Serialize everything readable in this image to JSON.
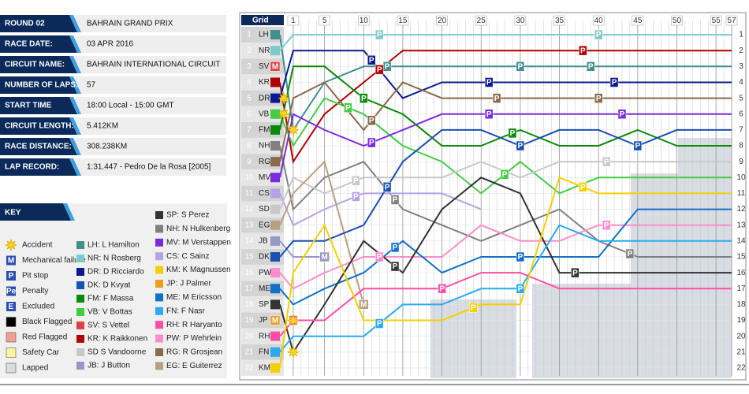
{
  "info": {
    "round": "ROUND 02",
    "race_name": "BAHRAIN GRAND PRIX",
    "rows": [
      {
        "label": "RACE DATE:",
        "value": "03 APR 2016"
      },
      {
        "label": "CIRCUIT NAME:",
        "value": "BAHRAIN INTERNATIONAL CIRCUIT"
      },
      {
        "label": "NUMBER OF LAPS:",
        "value": "57"
      },
      {
        "label": "START TIME",
        "value": "18:00 Local - 15:00 GMT"
      },
      {
        "label": "CIRCUIT LENGTH:",
        "value": "5.412KM"
      },
      {
        "label": "RACE DISTANCE:",
        "value": "308.238KM"
      },
      {
        "label": "LAP RECORD:",
        "value": "1:31.447 - Pedro De la Rosa [2005]"
      }
    ]
  },
  "key": {
    "title": "KEY",
    "symbols": [
      {
        "label": "Accident"
      },
      {
        "label": "Mechanical failure",
        "icon": "M"
      },
      {
        "label": "Pit stop",
        "icon": "P"
      },
      {
        "label": "Penalty",
        "icon": "Pe"
      },
      {
        "label": "Excluded",
        "icon": "E"
      },
      {
        "label": "Black Flagged",
        "color": "#000000"
      },
      {
        "label": "Red Flagged",
        "color": "#f4a090"
      },
      {
        "label": "Safety Car",
        "color": "#fff3a0"
      },
      {
        "label": "Lapped",
        "color": "#d8dde3"
      }
    ],
    "drivers_a": [
      {
        "text": "LH: L Hamilton",
        "color": "#3f8f8f"
      },
      {
        "text": "NR: N Rosberg",
        "color": "#7fc9c9"
      },
      {
        "text": "DR: D Ricciardo",
        "color": "#0a1a90"
      },
      {
        "text": "DK: D Kvyat",
        "color": "#1a50b0"
      },
      {
        "text": "FM: F Massa",
        "color": "#0a8a0a"
      },
      {
        "text": "VB: V Bottas",
        "color": "#44cc44"
      },
      {
        "text": "SV: S Vettel",
        "color": "#e04040"
      },
      {
        "text": "KR: K Raikkonen",
        "color": "#b00000"
      },
      {
        "text": "SD S Vandoorne",
        "color": "#c8c8cc"
      },
      {
        "text": "JB: J Button",
        "color": "#9898c8"
      }
    ],
    "drivers_b": [
      {
        "text": "SP: S Perez",
        "color": "#333333"
      },
      {
        "text": "NH: N Hulkenberg",
        "color": "#808080"
      },
      {
        "text": "MV: M Verstappen",
        "color": "#7a2bdc"
      },
      {
        "text": "CS: C Sainz",
        "color": "#b4a4e4"
      },
      {
        "text": "KM: K Magnussen",
        "color": "#f5d000"
      },
      {
        "text": "JP: J Palmer",
        "color": "#e8a020"
      },
      {
        "text": "ME: M Ericsson",
        "color": "#1270c8"
      },
      {
        "text": "FN: F Nasr",
        "color": "#2aaaf0"
      },
      {
        "text": "RH: R Haryanto",
        "color": "#ff4da6"
      },
      {
        "text": "PW: P Wehrlein",
        "color": "#ff8ccc"
      },
      {
        "text": "RG: R Grosjean",
        "color": "#8a6a4a"
      },
      {
        "text": "EG: E Guiterrez",
        "color": "#b8a080"
      }
    ]
  },
  "chart_data": {
    "type": "line",
    "grid_label": "Grid",
    "x": [
      0,
      1,
      5,
      10,
      15,
      20,
      25,
      30,
      35,
      40,
      45,
      50,
      57
    ],
    "xlim": [
      0,
      57
    ],
    "xticks": [
      1,
      5,
      10,
      15,
      20,
      25,
      30,
      35,
      40,
      45,
      50,
      55,
      57
    ],
    "ylim": [
      0.5,
      22.5
    ],
    "y_inverted": true,
    "yticks": [
      1,
      2,
      3,
      4,
      5,
      6,
      7,
      8,
      9,
      10,
      11,
      12,
      13,
      14,
      15,
      16,
      17,
      18,
      19,
      20,
      21,
      22
    ],
    "series": [
      {
        "name": "LH",
        "color": "#3f8f8f",
        "values": [
          1,
          7,
          4,
          3,
          3,
          3,
          3,
          3,
          3,
          3,
          3,
          3,
          3
        ],
        "pit_laps": [
          13,
          30,
          39
        ],
        "accident_laps": [
          1
        ]
      },
      {
        "name": "NR",
        "color": "#7fc9c9",
        "values": [
          2,
          1,
          1,
          1,
          1,
          1,
          1,
          1,
          1,
          1,
          1,
          1,
          1
        ],
        "pit_laps": [
          12,
          40
        ]
      },
      {
        "name": "SV",
        "color": "#e04040",
        "values": [
          3,
          null,
          null,
          null,
          null,
          null,
          null,
          null,
          null,
          null,
          null,
          null,
          null
        ],
        "failure_laps": [
          0
        ]
      },
      {
        "name": "KR",
        "color": "#b00000",
        "values": [
          4,
          9,
          6,
          4,
          2,
          2,
          2,
          2,
          2,
          2,
          2,
          2,
          2
        ],
        "pit_laps": [
          12,
          38
        ]
      },
      {
        "name": "DR",
        "color": "#0a1a90",
        "values": [
          5,
          2,
          2,
          2,
          5,
          4,
          4,
          4,
          4,
          4,
          4,
          4,
          4
        ],
        "pit_laps": [
          11,
          26,
          42
        ],
        "accident_laps": [
          0
        ]
      },
      {
        "name": "VB",
        "color": "#44cc44",
        "values": [
          6,
          8,
          5,
          6,
          8,
          9,
          11,
          9,
          11,
          10,
          10,
          10,
          10
        ],
        "pit_laps": [
          8,
          28
        ],
        "accident_laps": [
          0
        ]
      },
      {
        "name": "FM",
        "color": "#0a8a0a",
        "values": [
          7,
          3,
          3,
          5,
          6,
          8,
          8,
          7,
          8,
          8,
          7,
          8,
          8
        ],
        "pit_laps": [
          10,
          29
        ]
      },
      {
        "name": "NH",
        "color": "#808080",
        "values": [
          8,
          12,
          10,
          9,
          12,
          13,
          14,
          13,
          12,
          14,
          15,
          15,
          15
        ],
        "pit_laps": [
          14,
          44
        ]
      },
      {
        "name": "RG",
        "color": "#8a6a4a",
        "values": [
          9,
          5,
          4,
          7,
          4,
          5,
          5,
          5,
          5,
          5,
          5,
          5,
          5
        ],
        "pit_laps": [
          11,
          27,
          40
        ]
      },
      {
        "name": "MV",
        "color": "#7a2bdc",
        "values": [
          10,
          6,
          7,
          8,
          7,
          6,
          6,
          6,
          6,
          6,
          6,
          6,
          6
        ],
        "pit_laps": [
          11,
          26,
          43
        ]
      },
      {
        "name": "CS",
        "color": "#b4a4e4",
        "values": [
          11,
          13,
          12,
          11,
          11,
          11,
          12,
          null,
          null,
          null,
          null,
          null,
          null
        ],
        "pit_laps": [
          9
        ]
      },
      {
        "name": "SD",
        "color": "#c8c8cc",
        "values": [
          12,
          10,
          11,
          10,
          10,
          10,
          9,
          10,
          9,
          9,
          9,
          9,
          9
        ],
        "pit_laps": [
          9,
          41
        ]
      },
      {
        "name": "EG",
        "color": "#b8a080",
        "values": [
          13,
          11,
          9,
          18,
          null,
          null,
          null,
          null,
          null,
          null,
          null,
          null,
          null
        ],
        "failure_laps": [
          10
        ]
      },
      {
        "name": "JB",
        "color": "#9898c8",
        "values": [
          14,
          15,
          15,
          null,
          null,
          null,
          null,
          null,
          null,
          null,
          null,
          null,
          null
        ],
        "failure_laps": [
          5
        ]
      },
      {
        "name": "DK",
        "color": "#1a50b0",
        "values": [
          15,
          14,
          14,
          13,
          9,
          7,
          7,
          8,
          7,
          7,
          8,
          7,
          7
        ],
        "pit_laps": [
          13,
          30,
          45
        ]
      },
      {
        "name": "PW",
        "color": "#ff8ccc",
        "values": [
          16,
          17,
          16,
          15,
          15,
          15,
          13,
          14,
          14,
          13,
          13,
          13,
          13
        ],
        "pit_laps": [
          12,
          41
        ]
      },
      {
        "name": "ME",
        "color": "#1270c8",
        "values": [
          17,
          18,
          17,
          16,
          14,
          16,
          15,
          15,
          15,
          15,
          12,
          12,
          12
        ],
        "pit_laps": [
          14,
          30
        ]
      },
      {
        "name": "SP",
        "color": "#333333",
        "values": [
          18,
          21,
          18,
          14,
          16,
          12,
          10,
          11,
          16,
          16,
          16,
          16,
          16
        ],
        "pit_laps": [
          14,
          37
        ],
        "accident_laps": [
          1
        ]
      },
      {
        "name": "JP",
        "color": "#e8a020",
        "values": [
          19,
          null,
          null,
          null,
          null,
          null,
          null,
          null,
          null,
          null,
          null,
          null,
          null
        ],
        "failure_laps": [
          0
        ]
      },
      {
        "name": "RH",
        "color": "#ff4da6",
        "values": [
          20,
          19,
          19,
          17,
          17,
          17,
          16,
          16,
          17,
          17,
          17,
          17,
          17
        ],
        "pit_laps": [
          1,
          20
        ],
        "accident_laps": [
          1
        ]
      },
      {
        "name": "FN",
        "color": "#2aaaf0",
        "values": [
          21,
          20,
          20,
          20,
          18,
          18,
          17,
          17,
          13,
          14,
          14,
          14,
          14
        ],
        "pit_laps": [
          12,
          30
        ]
      },
      {
        "name": "KM",
        "color": "#f5d000",
        "values": [
          22,
          16,
          13,
          19,
          19,
          19,
          18,
          18,
          10,
          11,
          11,
          11,
          11
        ],
        "pit_laps": [
          24,
          38
        ]
      }
    ]
  }
}
